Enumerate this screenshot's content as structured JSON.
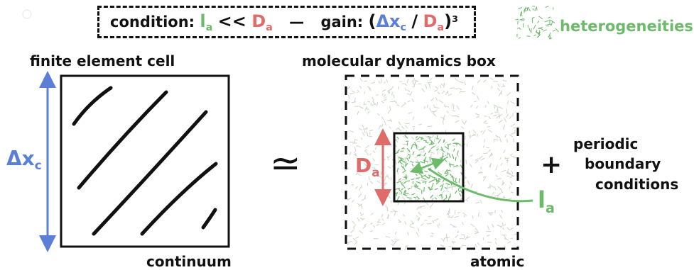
{
  "colors": {
    "green": "#6dbb6a",
    "red": "#e06b6b",
    "blue": "#5b7fd8",
    "black": "#111111"
  },
  "condition_box": {
    "condition_label": "condition:",
    "l_symbol": "l",
    "l_subscript": "a",
    "relation": "<<",
    "d_symbol": "D",
    "d_subscript": "a",
    "separator": "—",
    "gain_label": "gain:",
    "open_paren": "(",
    "delta_x": "Δx",
    "delta_x_subscript": "c",
    "slash": "/",
    "gain_d_symbol": "D",
    "gain_d_subscript": "a",
    "close_paren": ")",
    "exponent": "3"
  },
  "legend": {
    "label": "heterogeneities",
    "icon": "heterogeneity-texture-icon"
  },
  "left_panel": {
    "title": "finite element cell",
    "bottom_label": "continuum",
    "dimension_symbol": "Δx",
    "dimension_subscript": "c"
  },
  "approx_symbol": "≃",
  "right_panel": {
    "title": "molecular dynamics box",
    "bottom_label": "atomic",
    "inner_symbol": "D",
    "inner_subscript": "a",
    "pointer_symbol": "l",
    "pointer_subscript": "a"
  },
  "plus_symbol": "+",
  "periodic_text": {
    "line1": "periodic",
    "line2": "boundary",
    "line3": "conditions"
  }
}
